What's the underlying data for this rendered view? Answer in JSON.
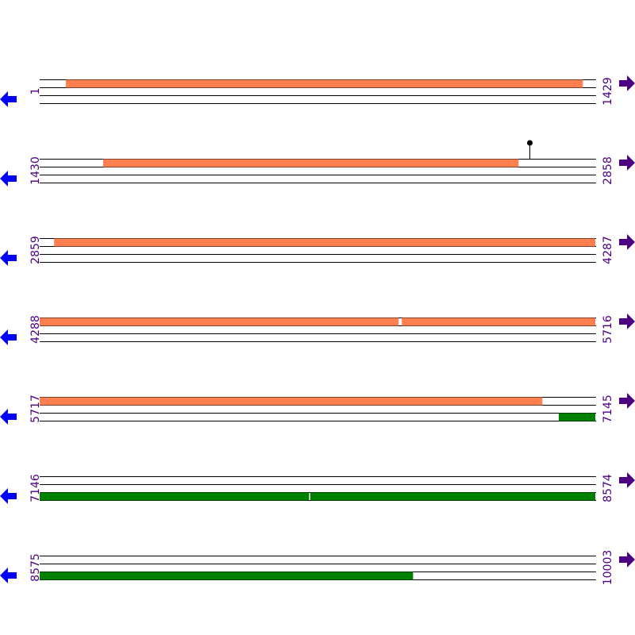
{
  "colors": {
    "forward": "#ff7f50",
    "reverse": "#008000",
    "label": "#4b0082",
    "left_arrow": "#0000ff",
    "right_arrow": "#4b0082",
    "line": "#000000",
    "pin_stem": "#cc0000"
  },
  "bp_per_row": 1429,
  "rows": [
    {
      "start": "1",
      "end": "1429"
    },
    {
      "start": "1430",
      "end": "2858"
    },
    {
      "start": "2859",
      "end": "4287"
    },
    {
      "start": "4288",
      "end": "5716"
    },
    {
      "start": "5717",
      "end": "7145"
    },
    {
      "start": "7146",
      "end": "8574"
    },
    {
      "start": "8575",
      "end": "10003"
    }
  ],
  "features": [
    {
      "strand": "forward",
      "start": 68,
      "end": 1397
    },
    {
      "strand": "forward",
      "start": 1593,
      "end": 2661
    },
    {
      "strand": "forward",
      "start": 2896,
      "end": 4287
    },
    {
      "strand": "forward",
      "start": 4288,
      "end": 5211
    },
    {
      "strand": "forward",
      "start": 5218,
      "end": 5716
    },
    {
      "strand": "forward",
      "start": 5717,
      "end": 7009
    },
    {
      "strand": "reverse",
      "start": 7050,
      "end": 7145
    },
    {
      "strand": "reverse",
      "start": 7146,
      "end": 7839
    },
    {
      "strand": "reverse",
      "start": 7841,
      "end": 8574
    },
    {
      "strand": "reverse",
      "start": 8575,
      "end": 9535
    }
  ],
  "markers": [
    {
      "position": 2688,
      "icon": "lollipop-pin-icon"
    }
  ],
  "icons": {
    "left": "left-arrow-icon",
    "right": "right-arrow-icon"
  }
}
